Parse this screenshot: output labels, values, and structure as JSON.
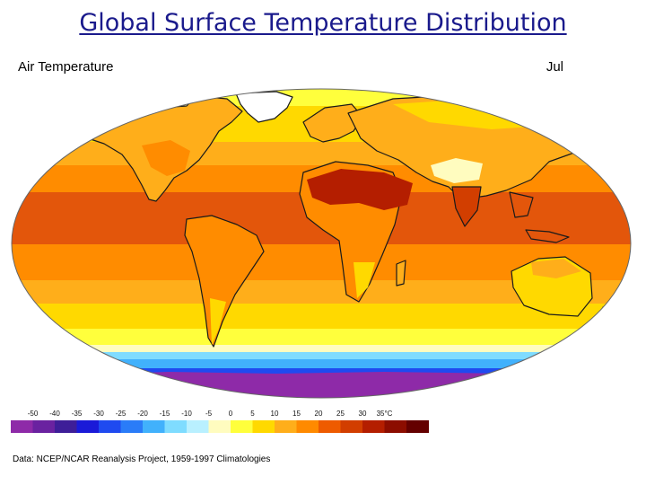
{
  "slide": {
    "title": "Global Surface Temperature Distribution"
  },
  "map": {
    "heading": "Air Temperature",
    "month": "Jul",
    "projection": "Robinson",
    "credit": "Data:  NCEP/NCAR Reanalysis Project, 1959-1997 Climatologies"
  },
  "legend": {
    "unit_label": "35°C",
    "ticks": [
      "-50",
      "-40",
      "-35",
      "-30",
      "-25",
      "-20",
      "-15",
      "-10",
      "-5",
      "0",
      "5",
      "10",
      "15",
      "20",
      "25",
      "30"
    ],
    "colors": [
      "#8e2aa8",
      "#6a22a0",
      "#3e1e98",
      "#1a1ad8",
      "#1f4af0",
      "#2a7cf8",
      "#41b1fc",
      "#7fdcff",
      "#b9f0ff",
      "#fffcbf",
      "#ffff3c",
      "#ffd900",
      "#ffae1a",
      "#ff8a00",
      "#ee5b00",
      "#d23e00",
      "#b41e00",
      "#8c0d00",
      "#640000"
    ]
  },
  "palette": {
    "ocean_tropical": "#e3560b",
    "ocean_warm": "#ff8c00",
    "ocean_mild": "#ffae1a",
    "ocean_cool": "#ffd900",
    "ocean_cold": "#ffff3c",
    "sea_ice_edge": "#7fdcff",
    "antarctica": "#8e2aa8",
    "hot_desert": "#b41e00"
  }
}
